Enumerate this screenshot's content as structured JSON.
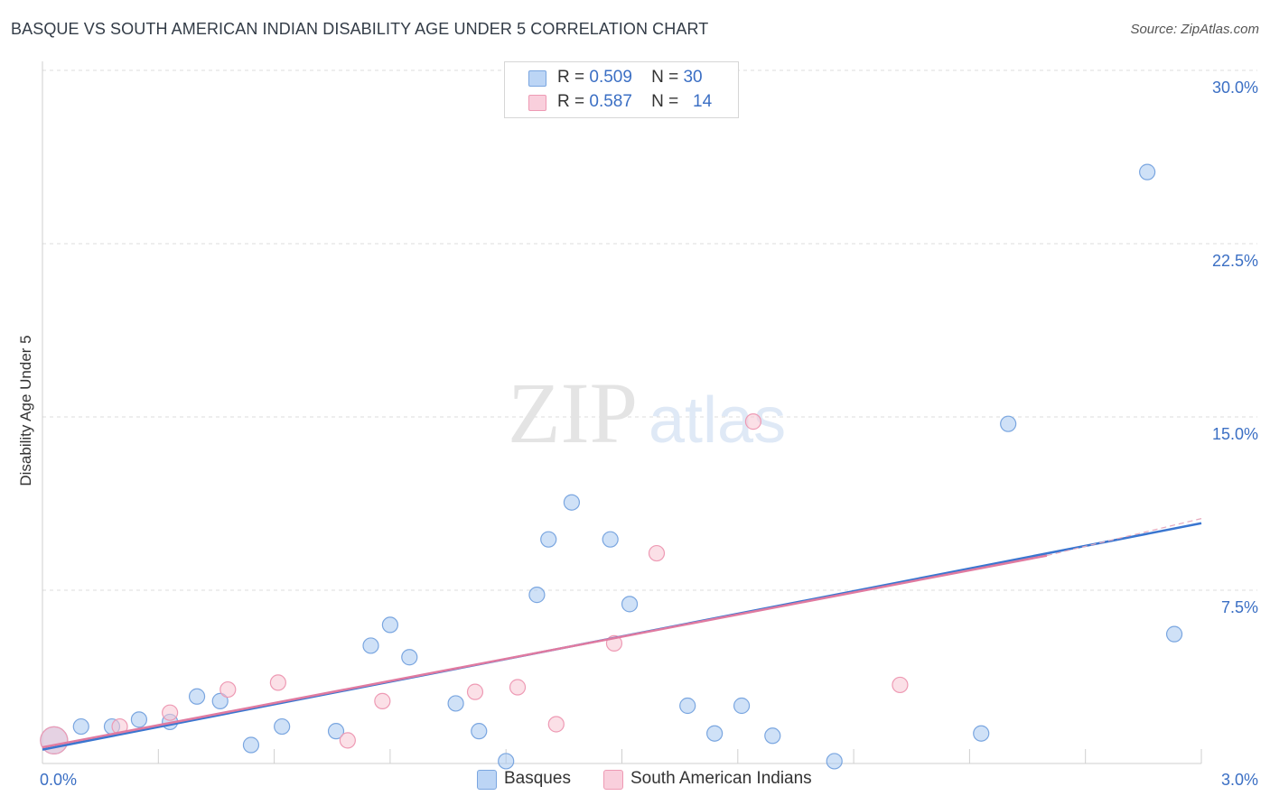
{
  "header": {
    "title": "BASQUE VS SOUTH AMERICAN INDIAN DISABILITY AGE UNDER 5 CORRELATION CHART",
    "source": "Source: ZipAtlas.com"
  },
  "watermark": {
    "left": "ZIP",
    "right": "atlas"
  },
  "legend": {
    "rows": [
      {
        "r_label": "R =",
        "r_value": "0.509",
        "n_label": "N =",
        "n_value": "30"
      },
      {
        "r_label": "R =",
        "r_value": "0.587",
        "n_label": "N =",
        "n_value": "14"
      }
    ]
  },
  "chart_data": {
    "type": "scatter",
    "title": "BASQUE VS SOUTH AMERICAN INDIAN DISABILITY AGE UNDER 5 CORRELATION CHART",
    "ylabel": "Disability Age Under 5",
    "xlabel": "",
    "xlim": [
      0,
      3.0
    ],
    "ylim": [
      0,
      30.0
    ],
    "x_tick_labels": [
      "0.0%",
      "3.0%"
    ],
    "y_ticks": [
      7.5,
      15.0,
      22.5,
      30.0
    ],
    "y_tick_labels": [
      "7.5%",
      "15.0%",
      "22.5%",
      "30.0%"
    ],
    "grid": "horizontal dashed",
    "legend_position": "top-center",
    "series": [
      {
        "name": "Basques",
        "color": "#a8c8f0",
        "stroke": "#7aa6e0",
        "line_color": "#3a76d0",
        "r": 0.509,
        "n": 30,
        "trend": {
          "x0": 0.0,
          "y0": 0.6,
          "x1": 3.0,
          "y1": 10.4
        },
        "points": [
          {
            "x": 0.03,
            "y": 1.0,
            "big": true
          },
          {
            "x": 0.1,
            "y": 1.6
          },
          {
            "x": 0.18,
            "y": 1.6
          },
          {
            "x": 0.25,
            "y": 1.9
          },
          {
            "x": 0.33,
            "y": 1.8
          },
          {
            "x": 0.4,
            "y": 2.9
          },
          {
            "x": 0.46,
            "y": 2.7
          },
          {
            "x": 0.54,
            "y": 0.8
          },
          {
            "x": 0.62,
            "y": 1.6
          },
          {
            "x": 0.76,
            "y": 1.4
          },
          {
            "x": 0.85,
            "y": 5.1
          },
          {
            "x": 0.9,
            "y": 6.0
          },
          {
            "x": 0.95,
            "y": 4.6
          },
          {
            "x": 1.07,
            "y": 2.6
          },
          {
            "x": 1.13,
            "y": 1.4
          },
          {
            "x": 1.2,
            "y": 0.1
          },
          {
            "x": 1.28,
            "y": 7.3
          },
          {
            "x": 1.31,
            "y": 9.7
          },
          {
            "x": 1.37,
            "y": 11.3
          },
          {
            "x": 1.47,
            "y": 9.7
          },
          {
            "x": 1.52,
            "y": 6.9
          },
          {
            "x": 1.67,
            "y": 2.5
          },
          {
            "x": 1.74,
            "y": 1.3
          },
          {
            "x": 1.81,
            "y": 2.5
          },
          {
            "x": 1.89,
            "y": 1.2
          },
          {
            "x": 2.05,
            "y": 0.1
          },
          {
            "x": 2.43,
            "y": 1.3
          },
          {
            "x": 2.5,
            "y": 14.7
          },
          {
            "x": 2.86,
            "y": 25.6
          },
          {
            "x": 2.93,
            "y": 5.6
          }
        ]
      },
      {
        "name": "South American Indians",
        "color": "#f8c6d4",
        "stroke": "#ee9ab4",
        "line_color": "#e07aa0",
        "r": 0.587,
        "n": 14,
        "trend": {
          "x0": 0.0,
          "y0": 0.7,
          "x1": 2.6,
          "y1": 9.0
        },
        "trend_ext": {
          "x0": 2.6,
          "y0": 9.0,
          "x1": 3.0,
          "y1": 10.6
        },
        "points": [
          {
            "x": 0.03,
            "y": 1.0,
            "big": true
          },
          {
            "x": 0.2,
            "y": 1.6
          },
          {
            "x": 0.33,
            "y": 2.2
          },
          {
            "x": 0.48,
            "y": 3.2
          },
          {
            "x": 0.61,
            "y": 3.5
          },
          {
            "x": 0.79,
            "y": 1.0
          },
          {
            "x": 0.88,
            "y": 2.7
          },
          {
            "x": 1.12,
            "y": 3.1
          },
          {
            "x": 1.23,
            "y": 3.3
          },
          {
            "x": 1.33,
            "y": 1.7
          },
          {
            "x": 1.48,
            "y": 5.2
          },
          {
            "x": 1.59,
            "y": 9.1
          },
          {
            "x": 1.84,
            "y": 14.8
          },
          {
            "x": 2.22,
            "y": 3.4
          }
        ]
      }
    ]
  }
}
